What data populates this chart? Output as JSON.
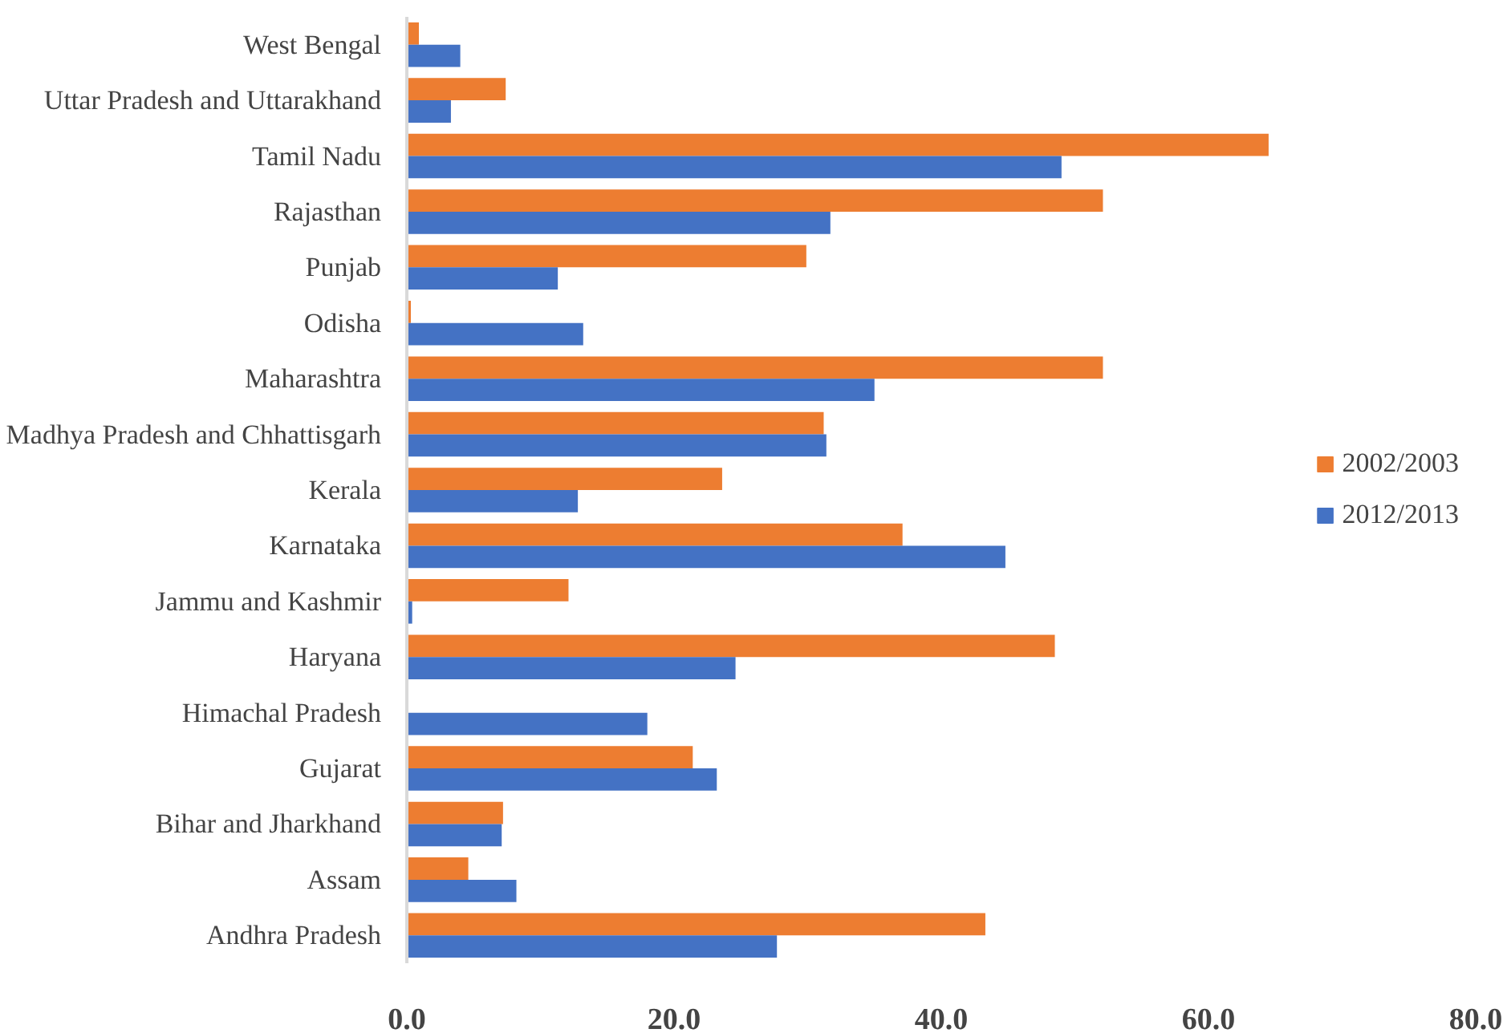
{
  "chart_data": {
    "type": "bar",
    "orientation": "horizontal",
    "categories": [
      "West Bengal",
      "Uttar Pradesh and Uttarakhand",
      "Tamil Nadu",
      "Rajasthan",
      "Punjab",
      "Odisha",
      "Maharashtra",
      "Madhya Pradesh and Chhattisgarh",
      "Kerala",
      "Karnataka",
      "Jammu and Kashmir",
      "Haryana",
      "Himachal Pradesh",
      "Gujarat",
      "Bihar and Jharkhand",
      "Assam",
      "Andhra Pradesh"
    ],
    "series": [
      {
        "name": "2002/2003",
        "color": "#ed7d31",
        "values": [
          0.9,
          7.4,
          64.5,
          52.1,
          29.9,
          0.3,
          52.1,
          31.2,
          23.6,
          37.1,
          12.1,
          48.5,
          0,
          21.4,
          7.2,
          4.6,
          43.3
        ]
      },
      {
        "name": "2012/2013",
        "color": "#4472c4",
        "values": [
          4.0,
          3.3,
          49.0,
          31.7,
          11.3,
          13.2,
          35.0,
          31.4,
          12.8,
          44.8,
          0.4,
          24.6,
          18.0,
          23.2,
          7.1,
          8.2,
          27.7
        ]
      }
    ],
    "xlim": [
      0,
      80
    ],
    "xticks": [
      {
        "value": 0,
        "label": "0.0"
      },
      {
        "value": 20,
        "label": "20.0"
      },
      {
        "value": 40,
        "label": "40.0"
      },
      {
        "value": 60,
        "label": "60.0"
      },
      {
        "value": 80,
        "label": "80.0"
      }
    ],
    "grid": false,
    "legend": "right"
  }
}
